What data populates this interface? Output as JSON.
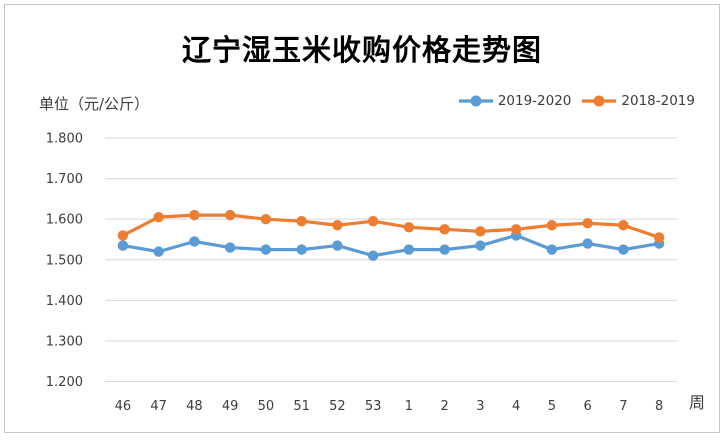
{
  "colors": {
    "border": "#C8C8C8",
    "grid": "#D9D9D9",
    "axis_text": "#3d3d3d",
    "title": "#000000",
    "series_blue": "#5B9BD5",
    "series_orange": "#ED7D31"
  },
  "chart_data": {
    "type": "line",
    "title": "辽宁湿玉米收购价格走势图",
    "unit_label": "单位（元/公斤）",
    "xlabel": "周",
    "ylabel": "",
    "categories": [
      "46",
      "47",
      "48",
      "49",
      "50",
      "51",
      "52",
      "53",
      "1",
      "2",
      "3",
      "4",
      "5",
      "6",
      "7",
      "8"
    ],
    "series": [
      {
        "name": "2019-2020",
        "color": "#5B9BD5",
        "values": [
          1.535,
          1.52,
          1.545,
          1.53,
          1.525,
          1.525,
          1.535,
          1.51,
          1.525,
          1.525,
          1.535,
          1.56,
          1.525,
          1.54,
          1.525,
          1.54
        ]
      },
      {
        "name": "2018-2019",
        "color": "#ED7D31",
        "values": [
          1.56,
          1.605,
          1.61,
          1.61,
          1.6,
          1.595,
          1.585,
          1.595,
          1.58,
          1.575,
          1.57,
          1.575,
          1.585,
          1.59,
          1.585,
          1.555
        ]
      }
    ],
    "ylim": [
      1.2,
      1.8
    ],
    "ytick_step": 0.1,
    "ytick_labels": [
      "1.200",
      "1.300",
      "1.400",
      "1.500",
      "1.600",
      "1.700",
      "1.800"
    ],
    "grid": true,
    "legend_position": "top-right"
  }
}
